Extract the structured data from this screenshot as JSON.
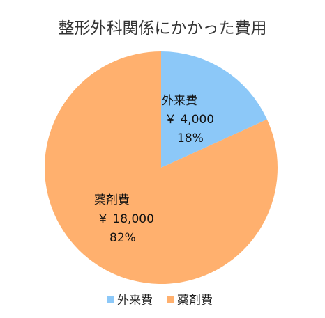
{
  "chart_data": {
    "type": "pie",
    "title": "整形外科関係にかかった費用",
    "slices": [
      {
        "label": "外来費",
        "value": 4000,
        "value_label": "￥ 4,000",
        "percent_label": "18%",
        "color": "#8CC8F8"
      },
      {
        "label": "薬剤費",
        "value": 18000,
        "value_label": "￥ 18,000",
        "percent_label": "82%",
        "color": "#FFB06E"
      }
    ],
    "start_angle": "12 o'clock",
    "direction": "clockwise",
    "legend": {
      "position": "bottom",
      "items": [
        "外来費",
        "薬剤費"
      ]
    }
  }
}
